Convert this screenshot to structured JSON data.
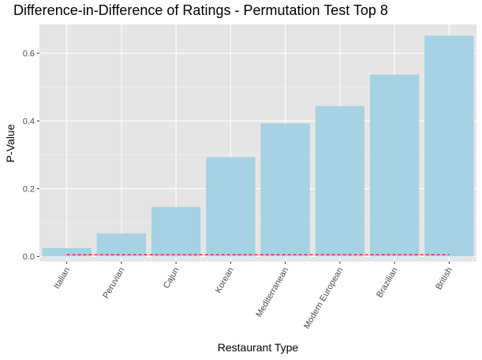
{
  "chart_data": {
    "type": "bar",
    "title": "Difference-in-Difference of Ratings - Permutation Test Top 8",
    "xlabel": "Restaurant Type",
    "ylabel": "P-Value",
    "categories": [
      "Italian",
      "Peruvian",
      "Cajun",
      "Korean",
      "Mediterranean",
      "Modern European",
      "Brazilian",
      "British"
    ],
    "values": [
      0.025,
      0.068,
      0.146,
      0.293,
      0.393,
      0.444,
      0.537,
      0.652
    ],
    "ylim": [
      -0.015,
      0.685
    ],
    "yticks": [
      0.0,
      0.2,
      0.4,
      0.6
    ],
    "ytick_labels": [
      "0.0",
      "0.2",
      "0.4",
      "0.6"
    ],
    "reference_line": {
      "value": 0.005,
      "style": "dashed",
      "color": "#e41a1c"
    },
    "bar_color": "#a6d2e3",
    "panel_background": "#e5e5e5",
    "grid": true,
    "legend": "none"
  }
}
